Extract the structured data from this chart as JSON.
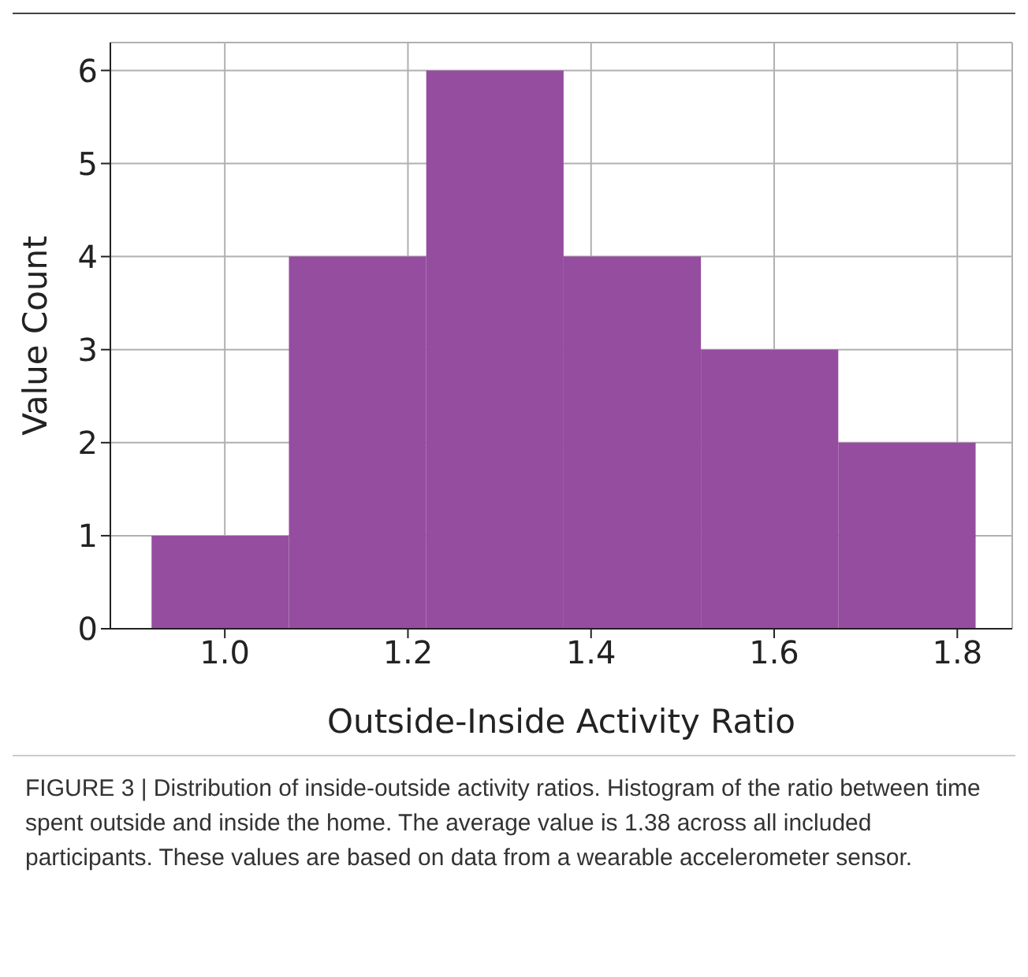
{
  "chart_data": {
    "type": "histogram",
    "xlabel": "Outside-Inside Activity Ratio",
    "ylabel": "Value Count",
    "bins": [
      0.92,
      1.07,
      1.22,
      1.37,
      1.52,
      1.67,
      1.82
    ],
    "values": [
      1,
      4,
      6,
      4,
      3,
      2
    ],
    "color": "#954d9f",
    "xlim": [
      0.875,
      1.86
    ],
    "xticks": [
      {
        "value": 1.0,
        "label": "1.0"
      },
      1.2,
      1.4,
      1.6,
      1.8
    ],
    "ylim": [
      0,
      6.3
    ],
    "yticks": [
      0,
      1,
      2,
      3,
      4,
      5,
      6
    ],
    "grid": true,
    "annotations": [
      "FIGURE 3 | Distribution of inside-outside activity ratios. Histogram of the ratio between time spent outside and inside the home. The average value is 1.38 across all included participants. These values are based on data from a wearable accelerometer sensor."
    ]
  }
}
